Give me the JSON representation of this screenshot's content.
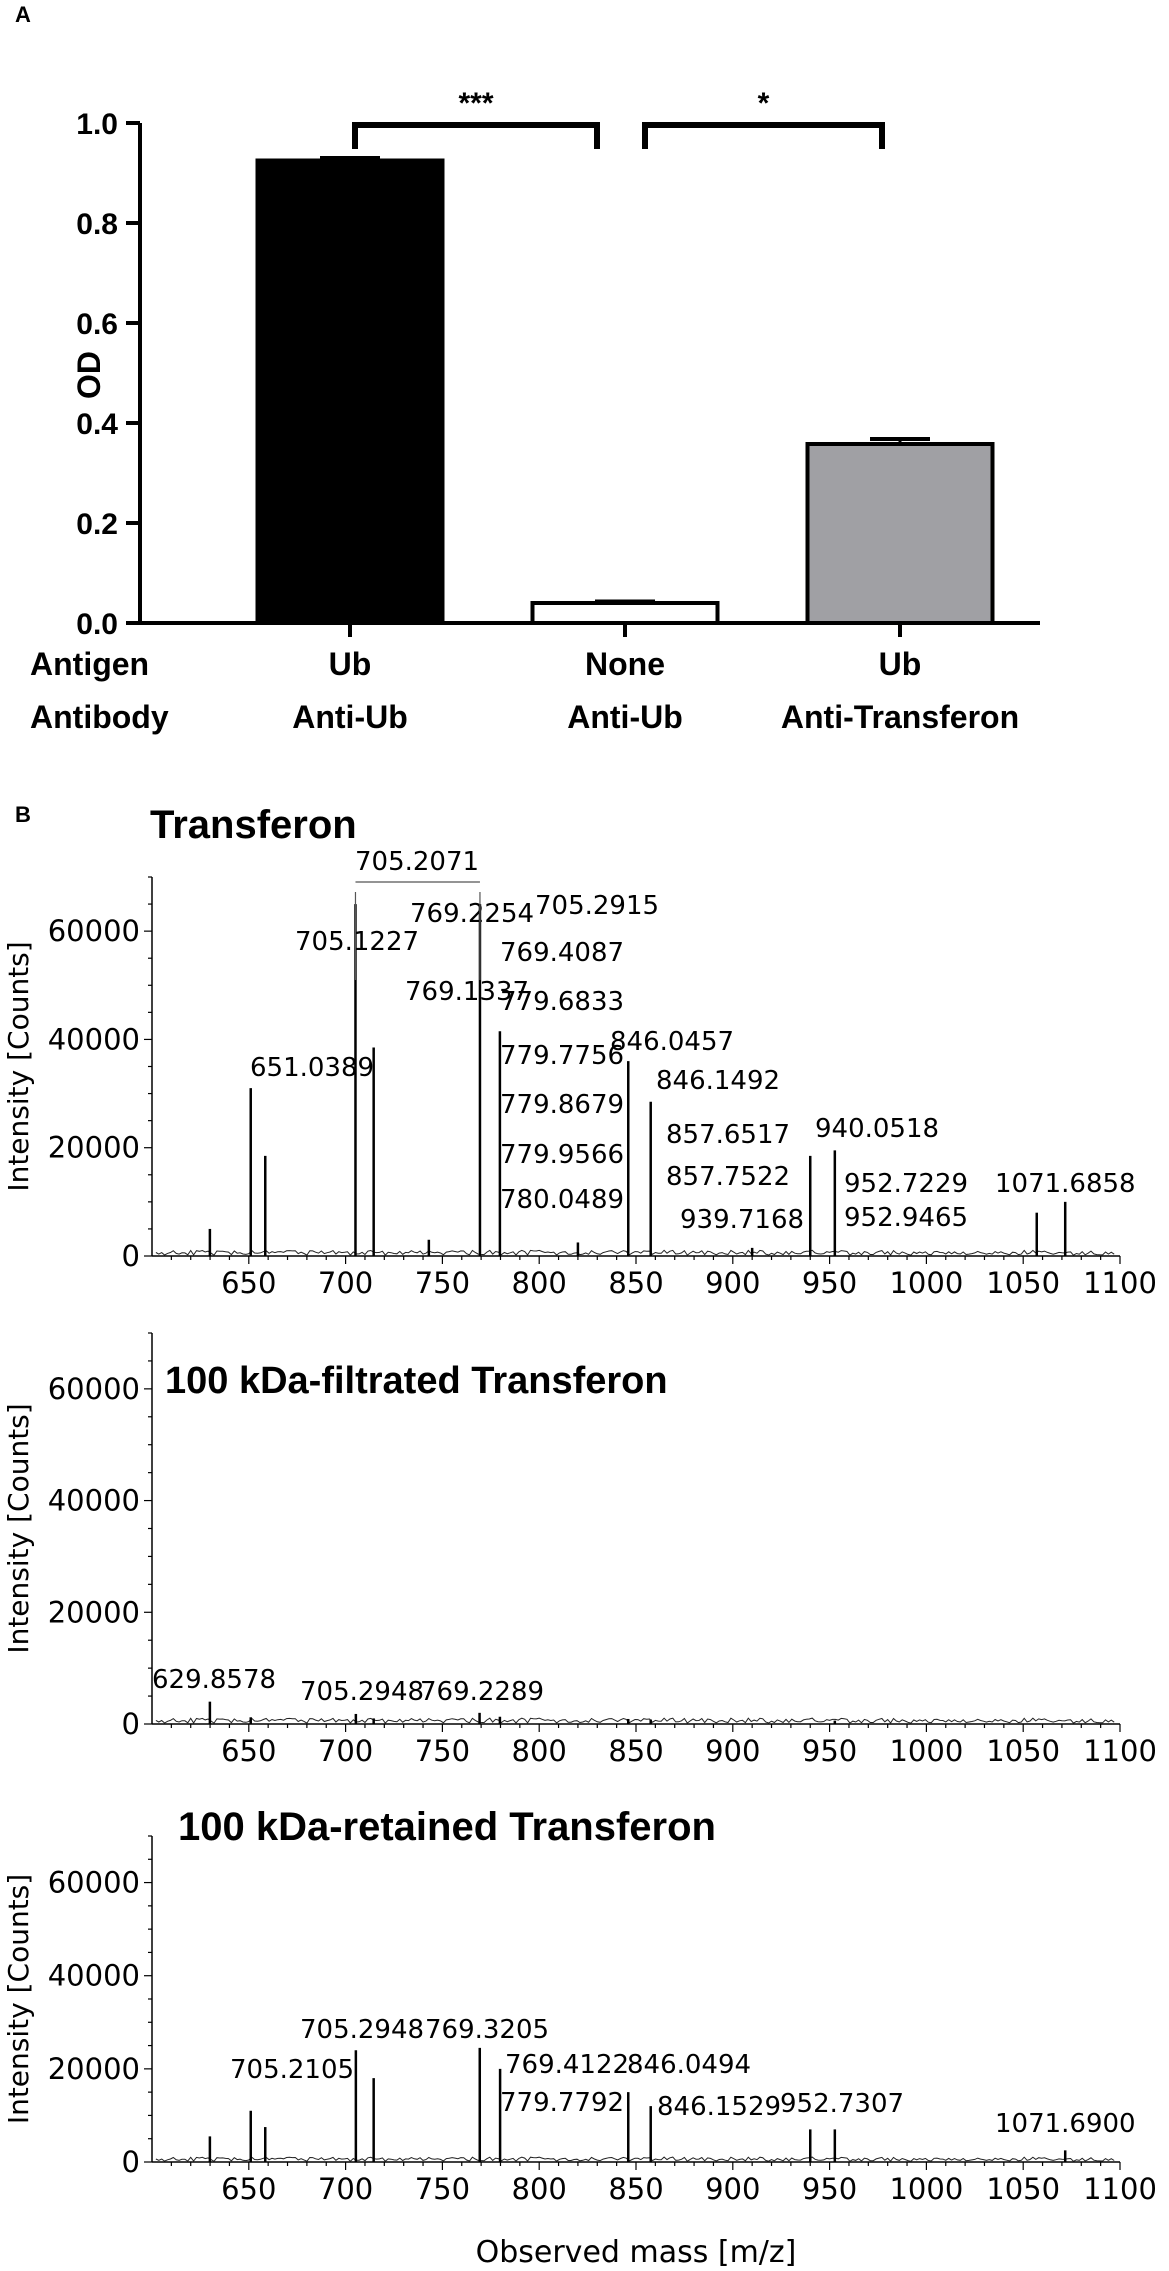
{
  "chart_data": [
    {
      "panel": "A",
      "type": "bar",
      "ylabel": "OD",
      "ylim": [
        0,
        1.0
      ],
      "yticks": [
        "0.0",
        "0.2",
        "0.4",
        "0.6",
        "0.8",
        "1.0"
      ],
      "row_labels": [
        "Antigen",
        "Antibody"
      ],
      "categories": [
        {
          "antigen": "Ub",
          "antibody": "Anti-Ub"
        },
        {
          "antigen": "None",
          "antibody": "Anti-Ub"
        },
        {
          "antigen": "Ub",
          "antibody": "Anti-Transferon"
        }
      ],
      "values": [
        0.925,
        0.04,
        0.358
      ],
      "errors": [
        0.005,
        0.003,
        0.01
      ],
      "bar_colors": [
        "#000000",
        "#ffffff",
        "#a0a0a4"
      ],
      "significance": [
        {
          "from": 0,
          "to": 1,
          "label": "***"
        },
        {
          "from": 1,
          "to": 2,
          "label": "*"
        }
      ]
    },
    {
      "panel": "B",
      "type": "line",
      "title": "Transferon",
      "ylabel": "Intensity [Counts]",
      "xlim": [
        600,
        1100
      ],
      "ylim": [
        0,
        70000
      ],
      "xticks": [
        "650",
        "700",
        "750",
        "800",
        "850",
        "900",
        "950",
        "1000",
        "1050",
        "1100"
      ],
      "yticks": [
        "0",
        "20000",
        "40000",
        "60000"
      ],
      "peaks": [
        {
          "x": 629.9,
          "y": 5000
        },
        {
          "x": 651.0,
          "y": 31000
        },
        {
          "x": 658.5,
          "y": 18500
        },
        {
          "x": 705.1,
          "y": 65000
        },
        {
          "x": 714.5,
          "y": 38500
        },
        {
          "x": 743.0,
          "y": 3000
        },
        {
          "x": 769.4,
          "y": 65000
        },
        {
          "x": 779.7,
          "y": 41500
        },
        {
          "x": 820.0,
          "y": 2500
        },
        {
          "x": 846.0,
          "y": 36000
        },
        {
          "x": 857.6,
          "y": 28500
        },
        {
          "x": 910.0,
          "y": 1500
        },
        {
          "x": 940.0,
          "y": 18500
        },
        {
          "x": 952.7,
          "y": 19500
        },
        {
          "x": 1057.0,
          "y": 8000
        },
        {
          "x": 1071.7,
          "y": 10000
        }
      ],
      "annotations": [
        "705.2071",
        "705.2915",
        "769.2254",
        "705.1227",
        "769.4087",
        "769.1337",
        "779.6833",
        "651.0389",
        "846.0457",
        "779.7756",
        "846.1492",
        "779.8679",
        "857.6517",
        "940.0518",
        "779.9566",
        "857.7522",
        "952.7229",
        "1071.6858",
        "939.7168",
        "952.9465",
        "780.0489"
      ]
    },
    {
      "panel": "B",
      "type": "line",
      "title": "100 kDa-filtrated Transferon",
      "ylabel": "Intensity [Counts]",
      "xlim": [
        600,
        1100
      ],
      "ylim": [
        0,
        70000
      ],
      "xticks": [
        "650",
        "700",
        "750",
        "800",
        "850",
        "900",
        "950",
        "1000",
        "1050",
        "1100"
      ],
      "yticks": [
        "0",
        "20000",
        "40000",
        "60000"
      ],
      "peaks": [
        {
          "x": 629.9,
          "y": 4000
        },
        {
          "x": 651.0,
          "y": 1200
        },
        {
          "x": 705.3,
          "y": 1800
        },
        {
          "x": 714.5,
          "y": 1000
        },
        {
          "x": 769.2,
          "y": 2000
        },
        {
          "x": 779.7,
          "y": 1300
        },
        {
          "x": 846.0,
          "y": 900
        },
        {
          "x": 857.6,
          "y": 800
        },
        {
          "x": 952.7,
          "y": 600
        }
      ],
      "annotations": [
        "629.8578",
        "705.2948",
        "769.2289"
      ]
    },
    {
      "panel": "B",
      "type": "line",
      "title": "100 kDa-retained Transferon",
      "ylabel": "Intensity [Counts]",
      "xlabel": "Observed mass [m/z]",
      "xlim": [
        600,
        1100
      ],
      "ylim": [
        0,
        70000
      ],
      "xticks": [
        "650",
        "700",
        "750",
        "800",
        "850",
        "900",
        "950",
        "1000",
        "1050",
        "1100"
      ],
      "yticks": [
        "0",
        "20000",
        "40000",
        "60000"
      ],
      "peaks": [
        {
          "x": 629.9,
          "y": 5500
        },
        {
          "x": 651.0,
          "y": 11000
        },
        {
          "x": 658.5,
          "y": 7500
        },
        {
          "x": 705.3,
          "y": 24000
        },
        {
          "x": 714.5,
          "y": 18000
        },
        {
          "x": 769.3,
          "y": 24500
        },
        {
          "x": 779.8,
          "y": 20000
        },
        {
          "x": 846.0,
          "y": 15000
        },
        {
          "x": 857.6,
          "y": 12000
        },
        {
          "x": 940.0,
          "y": 7000
        },
        {
          "x": 952.7,
          "y": 7000
        },
        {
          "x": 1071.7,
          "y": 2500
        }
      ],
      "annotations": [
        "705.2948",
        "769.3205",
        "705.2105",
        "769.4122",
        "846.0494",
        "779.7792",
        "846.1529",
        "952.7307",
        "1071.6900"
      ]
    }
  ],
  "panels": {
    "a": "A",
    "b": "B"
  }
}
